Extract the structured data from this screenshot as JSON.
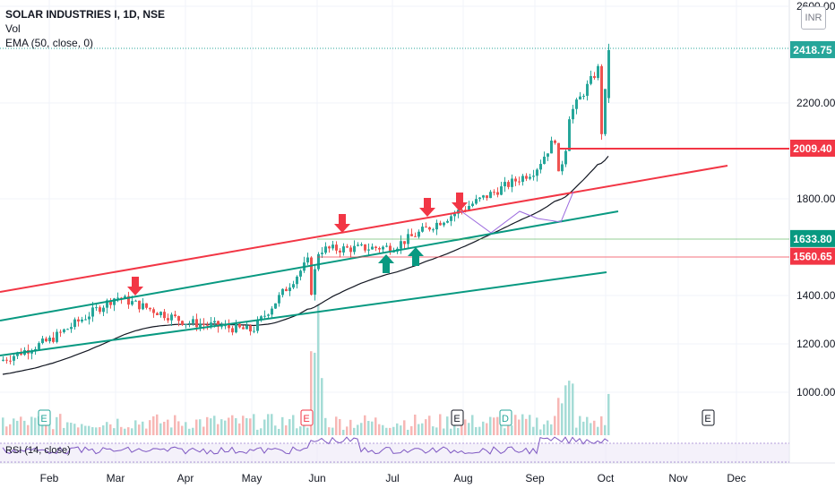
{
  "legend": {
    "title": "SOLAR INDUSTRIES I, 1D, NSE",
    "vol": "Vol",
    "ema": "EMA (50, close, 0)"
  },
  "rsi_label": "RSI (14, close)",
  "currency": "INR",
  "colors": {
    "up": "#26a69a",
    "down": "#ef5350",
    "resistance": "#f23645",
    "channel": "#089981",
    "ema": "#131722",
    "rsi": "#7e57c2",
    "grid": "#f0f3fa"
  },
  "chart_data": {
    "type": "candlestick",
    "y_axis": {
      "ticks": [
        "2600.00",
        "2200.00",
        "1800.00",
        "1400.00",
        "1200.00",
        "1000.00"
      ],
      "tick_values": [
        2600,
        2200,
        1800,
        1400,
        1200,
        1000
      ]
    },
    "x_axis": {
      "ticks": [
        "Feb",
        "Mar",
        "Apr",
        "May",
        "Jun",
        "Jul",
        "Aug",
        "Sep",
        "Oct",
        "Nov",
        "Dec"
      ]
    },
    "price_labels": [
      {
        "value": 2418.75,
        "text": "2418.75",
        "color": "#26a69a"
      },
      {
        "value": 2009.4,
        "text": "2009.40",
        "color": "#f23645"
      },
      {
        "value": 1633.8,
        "text": "1633.80",
        "color": "#089981"
      },
      {
        "value": 1560.65,
        "text": "1560.65",
        "color": "#f23645"
      }
    ],
    "close_series_anchors": [
      {
        "date": "Jan",
        "close": 1130
      },
      {
        "date": "Feb",
        "close": 1215
      },
      {
        "date": "Mar",
        "close": 1395
      },
      {
        "date": "Apr",
        "close": 1290
      },
      {
        "date": "May",
        "close": 1255
      },
      {
        "date": "Jun",
        "close": 1590
      },
      {
        "date": "Jul",
        "close": 1600
      },
      {
        "date": "Aug",
        "close": 1760
      },
      {
        "date": "Sep",
        "close": 1920
      },
      {
        "date": "Oct",
        "close": 2418.75
      }
    ],
    "event_markers": [
      {
        "label": "E",
        "color": "#26a69a"
      },
      {
        "label": "E",
        "color": "#f23645"
      },
      {
        "label": "E",
        "color": "#131722"
      },
      {
        "label": "D",
        "color": "#26a69a"
      },
      {
        "label": "E",
        "color": "#131722"
      }
    ],
    "arrows": {
      "down": 4,
      "up": 2
    }
  }
}
